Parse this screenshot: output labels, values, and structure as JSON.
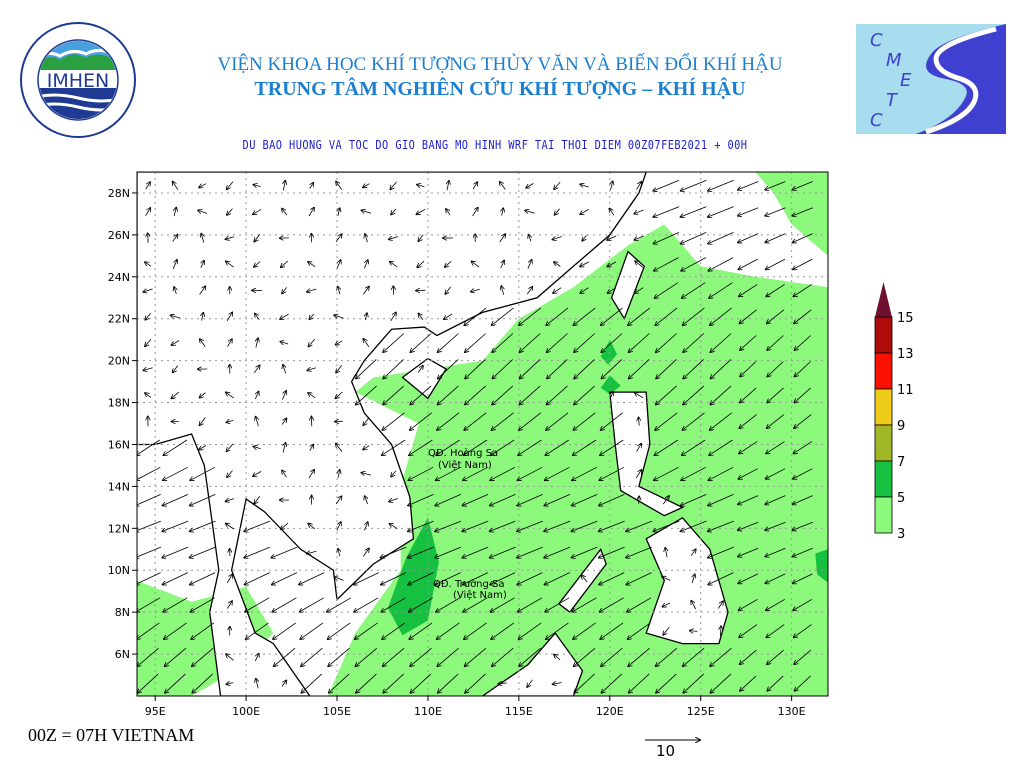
{
  "header": {
    "institute": "VIỆN KHOA HỌC KHÍ TƯỢNG THỦY VĂN VÀ BIẾN ĐỔI KHÍ HẬU",
    "center": "TRUNG TÂM NGHIÊN CỨU KHÍ TƯỢNG – KHÍ HẬU",
    "subtitle": "DU BAO HUONG VA TOC DO GIO BANG MO HINH WRF TAI THOI DIEM  00Z07FEB2021 + 00H"
  },
  "logos": {
    "left": {
      "text": "IMHEN",
      "ring_top": "VIỆN KHOA HỌC",
      "ring_bottom": "KHÍ TƯỢNG THỦY VĂN VÀ BIẾN ĐỔI KHÍ HẬU",
      "color": "#1f3a93"
    },
    "right": {
      "letters": [
        "C",
        "M",
        "E",
        "T",
        "C"
      ],
      "color": "#4040d0",
      "bg": "#a8dcef"
    }
  },
  "map": {
    "lon_range": [
      94,
      132
    ],
    "lat_range": [
      4,
      29
    ],
    "lon_ticks": [
      "95E",
      "100E",
      "105E",
      "110E",
      "115E",
      "120E",
      "125E",
      "130E"
    ],
    "lat_ticks": [
      "6N",
      "8N",
      "10N",
      "12N",
      "14N",
      "16N",
      "18N",
      "20N",
      "22N",
      "24N",
      "26N",
      "28N"
    ],
    "labels": [
      {
        "line1": "QĐ. Hoàng Sa",
        "line2": "(Việt Nam)"
      },
      {
        "line1": "QĐ. Trường Sa",
        "line2": "(Việt Nam)"
      }
    ],
    "grid": "dashed"
  },
  "legend": {
    "unit_levels": [
      "3",
      "5",
      "7",
      "9",
      "11",
      "13",
      "15"
    ],
    "colors": [
      "#8cf87c",
      "#16c040",
      "#a0b826",
      "#f0cc1a",
      "#fa1100",
      "#b00a0a",
      "#701030"
    ]
  },
  "footer": {
    "note": "00Z = 07H VIETNAM",
    "reference_vector": "10"
  }
}
